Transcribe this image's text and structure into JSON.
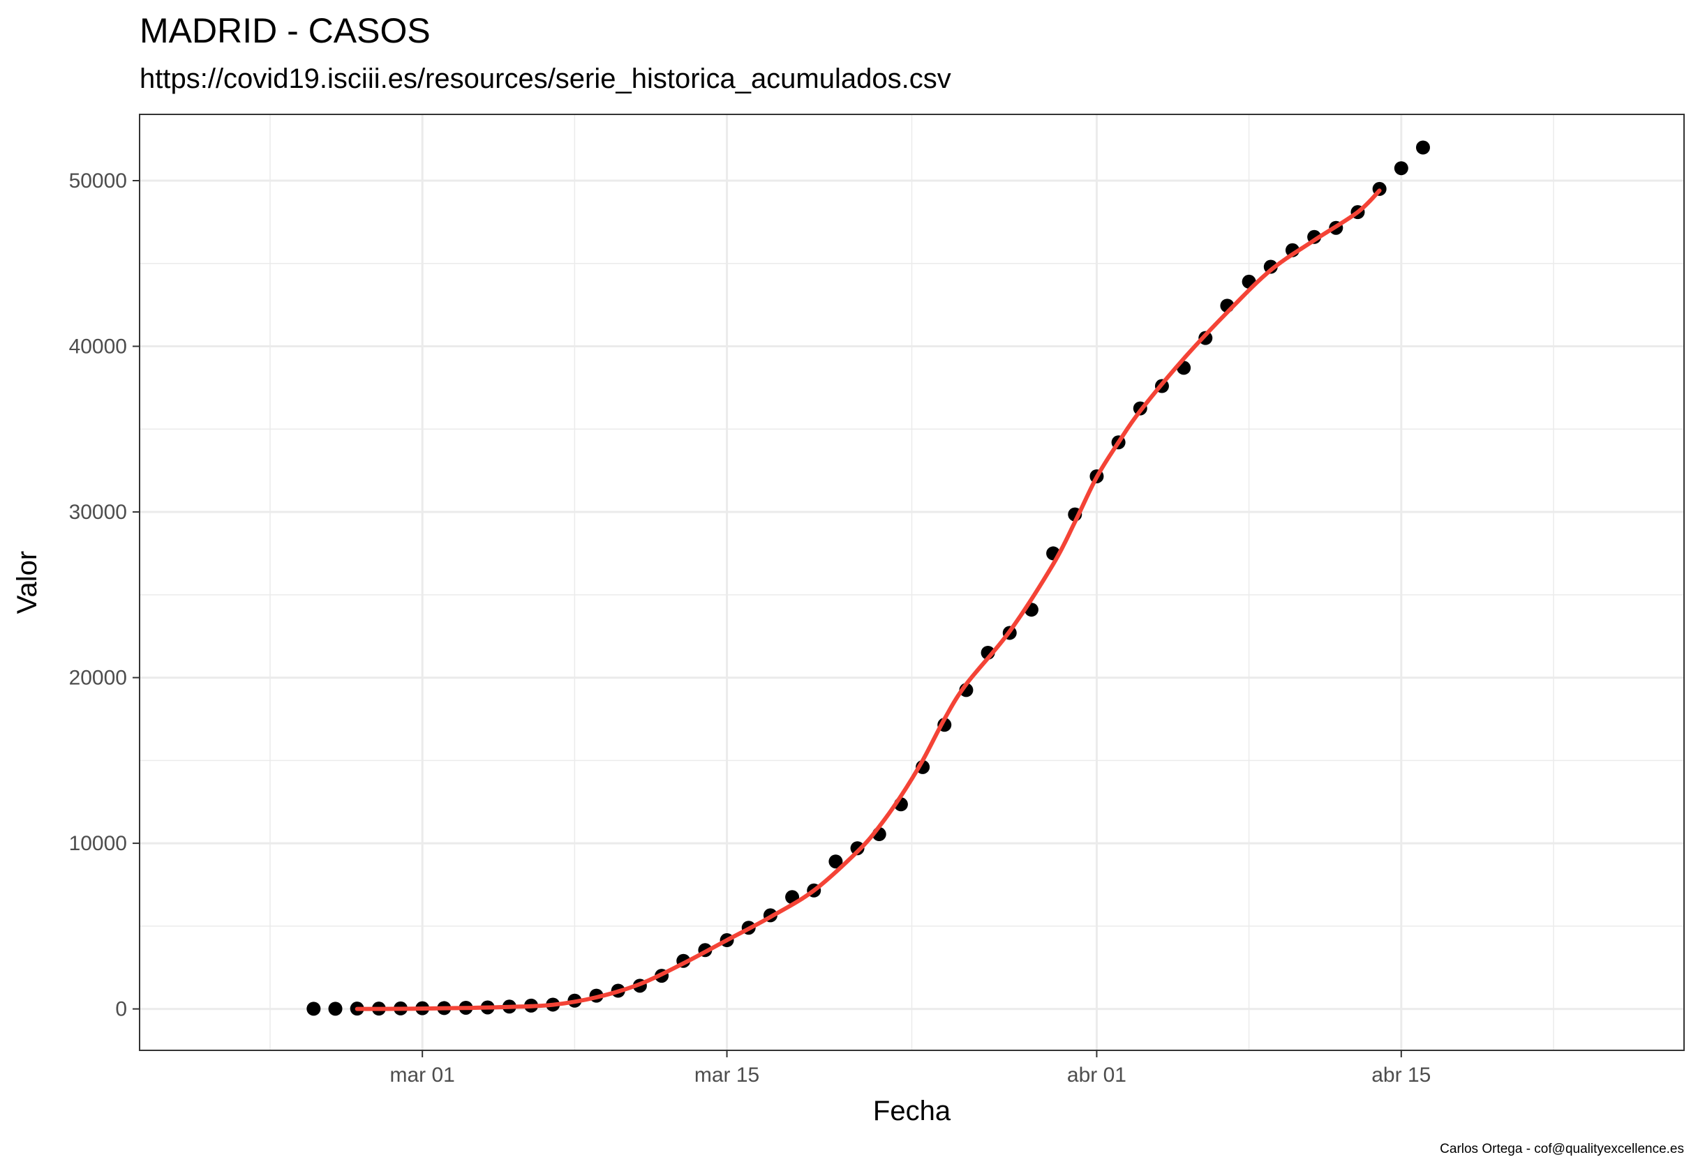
{
  "chart_data": {
    "type": "scatter",
    "title": "MADRID - CASOS",
    "subtitle": "https://covid19.isciii.es/resources/serie_historica_acumulados.csv",
    "xlabel": "Fecha",
    "ylabel": "Valor",
    "caption": "Carlos Ortega - cof@qualityexcellence.es",
    "x_ticks": [
      {
        "label": "mar 01",
        "date": "2020-03-01"
      },
      {
        "label": "mar 15",
        "date": "2020-03-15"
      },
      {
        "label": "abr 01",
        "date": "2020-04-01"
      },
      {
        "label": "abr 15",
        "date": "2020-04-15"
      }
    ],
    "y_ticks": [
      0,
      10000,
      20000,
      30000,
      40000,
      50000
    ],
    "xlim": [
      "2020-02-17",
      "2020-04-28"
    ],
    "ylim": [
      -2500,
      54000
    ],
    "grid": true,
    "series": [
      {
        "kind": "points",
        "color": "#000000",
        "x": [
          "2020-02-25",
          "2020-02-26",
          "2020-02-27",
          "2020-02-28",
          "2020-02-29",
          "2020-03-01",
          "2020-03-02",
          "2020-03-03",
          "2020-03-04",
          "2020-03-05",
          "2020-03-06",
          "2020-03-07",
          "2020-03-08",
          "2020-03-09",
          "2020-03-10",
          "2020-03-11",
          "2020-03-12",
          "2020-03-13",
          "2020-03-14",
          "2020-03-15",
          "2020-03-16",
          "2020-03-17",
          "2020-03-18",
          "2020-03-19",
          "2020-03-20",
          "2020-03-21",
          "2020-03-22",
          "2020-03-23",
          "2020-03-24",
          "2020-03-25",
          "2020-03-26",
          "2020-03-27",
          "2020-03-28",
          "2020-03-29",
          "2020-03-30",
          "2020-03-31",
          "2020-04-01",
          "2020-04-02",
          "2020-04-03",
          "2020-04-04",
          "2020-04-05",
          "2020-04-06",
          "2020-04-07",
          "2020-04-08",
          "2020-04-09",
          "2020-04-10",
          "2020-04-11",
          "2020-04-12",
          "2020-04-13",
          "2020-04-14",
          "2020-04-15",
          "2020-04-16"
        ],
        "values": [
          10,
          10,
          20,
          20,
          30,
          40,
          50,
          70,
          90,
          140,
          200,
          260,
          500,
          800,
          1100,
          1400,
          2000,
          2900,
          3550,
          4150,
          4900,
          5650,
          6750,
          7150,
          8900,
          9700,
          10550,
          12350,
          14600,
          17150,
          19250,
          21500,
          22700,
          24100,
          27500,
          29850,
          32150,
          34200,
          36250,
          37600,
          38700,
          40500,
          42450,
          43900,
          44800,
          45800,
          46600,
          47150,
          48100,
          49500,
          50750,
          52000
        ]
      },
      {
        "kind": "smooth",
        "color": "#f44336",
        "x": [
          "2020-02-27",
          "2020-02-28",
          "2020-03-01",
          "2020-03-03",
          "2020-03-05",
          "2020-03-07",
          "2020-03-09",
          "2020-03-11",
          "2020-03-13",
          "2020-03-15",
          "2020-03-17",
          "2020-03-19",
          "2020-03-21",
          "2020-03-22",
          "2020-03-23",
          "2020-03-24",
          "2020-03-25",
          "2020-03-26",
          "2020-03-28",
          "2020-03-30",
          "2020-03-31",
          "2020-04-01",
          "2020-04-02",
          "2020-04-03",
          "2020-04-05",
          "2020-04-07",
          "2020-04-09",
          "2020-04-11",
          "2020-04-13",
          "2020-04-14"
        ],
        "values": [
          0,
          0,
          20,
          60,
          120,
          250,
          700,
          1500,
          2750,
          4150,
          5550,
          7150,
          9500,
          11000,
          12850,
          15000,
          17500,
          19600,
          22800,
          26850,
          29400,
          32100,
          34200,
          36100,
          39250,
          42050,
          44600,
          46400,
          48100,
          49400
        ]
      }
    ]
  }
}
